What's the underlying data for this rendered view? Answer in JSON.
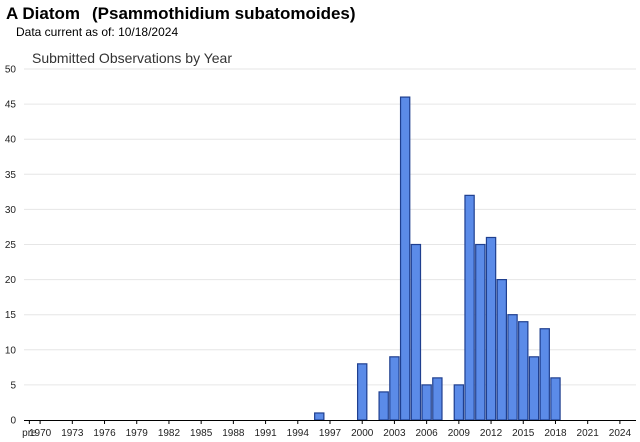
{
  "header": {
    "common_name": "A Diatom",
    "scientific_name": "(Psammothidium subatomoides)",
    "data_current_label": "Data current as of:",
    "data_current_date": "10/18/2024"
  },
  "colors": {
    "bar_fill": "#5b8be8",
    "bar_stroke": "#1f3f8f",
    "gridline": "#e6e6e6",
    "axis": "#000000"
  },
  "chart_data": {
    "type": "bar",
    "title": "Submitted Observations by Year",
    "xlabel": "",
    "ylabel": "",
    "ylim": [
      0,
      50
    ],
    "yticks": [
      0,
      5,
      10,
      15,
      20,
      25,
      30,
      35,
      40,
      45,
      50
    ],
    "x_tick_labels": [
      "pre",
      "1970",
      "1973",
      "1976",
      "1979",
      "1982",
      "1985",
      "1988",
      "1991",
      "1994",
      "1997",
      "2000",
      "2003",
      "2006",
      "2009",
      "2012",
      "2015",
      "2018",
      "2021",
      "2024"
    ],
    "x_tick_positions": [
      "pre",
      1970,
      1973,
      1976,
      1979,
      1982,
      1985,
      1988,
      1991,
      1994,
      1997,
      2000,
      2003,
      2006,
      2009,
      2012,
      2015,
      2018,
      2021,
      2024
    ],
    "grid": true,
    "bars": [
      {
        "year": 1996,
        "value": 1
      },
      {
        "year": 2000,
        "value": 8
      },
      {
        "year": 2002,
        "value": 4
      },
      {
        "year": 2003,
        "value": 9
      },
      {
        "year": 2004,
        "value": 46
      },
      {
        "year": 2005,
        "value": 25
      },
      {
        "year": 2006,
        "value": 5
      },
      {
        "year": 2007,
        "value": 6
      },
      {
        "year": 2009,
        "value": 5
      },
      {
        "year": 2010,
        "value": 32
      },
      {
        "year": 2011,
        "value": 25
      },
      {
        "year": 2012,
        "value": 26
      },
      {
        "year": 2013,
        "value": 20
      },
      {
        "year": 2014,
        "value": 15
      },
      {
        "year": 2015,
        "value": 14
      },
      {
        "year": 2016,
        "value": 9
      },
      {
        "year": 2017,
        "value": 13
      },
      {
        "year": 2018,
        "value": 6
      }
    ]
  }
}
